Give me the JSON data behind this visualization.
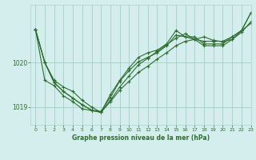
{
  "background_color": "#d4eeee",
  "grid_color": "#a8d4cc",
  "line_color": "#2d6e2d",
  "xlabel": "Graphe pression niveau de la mer (hPa)",
  "ylim": [
    1018.6,
    1021.3
  ],
  "xlim": [
    -0.5,
    23
  ],
  "yticks": [
    1019,
    1020
  ],
  "xtick_labels": [
    "0",
    "1",
    "2",
    "3",
    "4",
    "5",
    "6",
    "7",
    "8",
    "9",
    "10",
    "11",
    "12",
    "13",
    "14",
    "15",
    "16",
    "17",
    "18",
    "19",
    "20",
    "21",
    "22",
    "23"
  ],
  "series": [
    [
      1020.75,
      1020.0,
      1019.6,
      1019.45,
      1019.35,
      1019.15,
      1019.0,
      1018.88,
      1019.15,
      1019.45,
      1019.7,
      1019.95,
      1020.1,
      1020.25,
      1020.4,
      1020.55,
      1020.65,
      1020.52,
      1020.58,
      1020.5,
      1020.47,
      1020.52,
      1020.68,
      1020.92
    ],
    [
      1020.75,
      1019.6,
      1019.48,
      1019.25,
      1019.12,
      1018.96,
      1018.92,
      1018.88,
      1019.28,
      1019.6,
      1019.88,
      1020.12,
      1020.22,
      1020.28,
      1020.42,
      1020.72,
      1020.58,
      1020.58,
      1020.42,
      1020.42,
      1020.42,
      1020.58,
      1020.72,
      1021.12
    ],
    [
      1020.75,
      1020.0,
      1019.55,
      1019.35,
      1019.2,
      1019.05,
      1018.93,
      1018.9,
      1019.22,
      1019.58,
      1019.82,
      1020.02,
      1020.12,
      1020.22,
      1020.38,
      1020.62,
      1020.58,
      1020.52,
      1020.38,
      1020.38,
      1020.38,
      1020.52,
      1020.72,
      1021.12
    ],
    [
      1020.75,
      1020.0,
      1019.55,
      1019.35,
      1019.2,
      1019.05,
      1018.93,
      1018.88,
      1019.12,
      1019.38,
      1019.58,
      1019.78,
      1019.92,
      1020.08,
      1020.22,
      1020.38,
      1020.48,
      1020.52,
      1020.48,
      1020.48,
      1020.48,
      1020.58,
      1020.72,
      1020.88
    ]
  ]
}
